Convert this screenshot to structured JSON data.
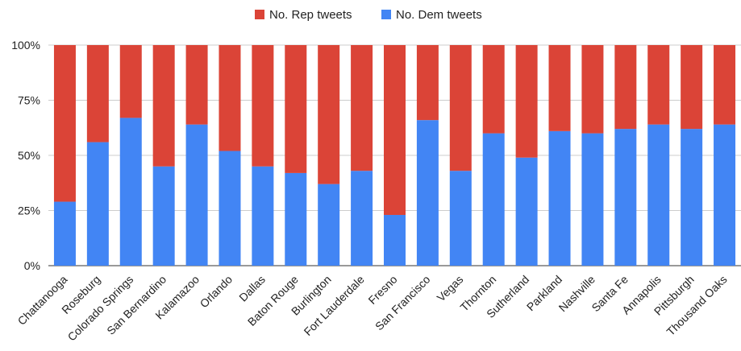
{
  "chart_data": {
    "type": "bar",
    "stacked": "percent",
    "title": "",
    "xlabel": "",
    "ylabel": "",
    "legend_position": "top",
    "grid": true,
    "ylim": [
      0,
      100
    ],
    "y_ticks": [
      "0%",
      "25%",
      "50%",
      "75%",
      "100%"
    ],
    "y_tick_values": [
      0,
      25,
      50,
      75,
      100
    ],
    "categories": [
      "Chattanooga",
      "Roseburg",
      "Colorado Springs",
      "San Bernardino",
      "Kalamazoo",
      "Orlando",
      "Dallas",
      "Baton Rouge",
      "Burlington",
      "Fort Lauderdale",
      "Fresno",
      "San Francisco",
      "Vegas",
      "Thornton",
      "Sutherland",
      "Parkland",
      "Nashville",
      "Santa Fe",
      "Annapolis",
      "Pittsburgh",
      "Thousand Oaks"
    ],
    "series": [
      {
        "name": "No. Rep tweets",
        "color": "#db4437",
        "values": [
          71,
          44,
          33,
          55,
          36,
          48,
          55,
          58,
          63,
          57,
          77,
          34,
          57,
          40,
          51,
          39,
          40,
          38,
          36,
          38,
          36
        ]
      },
      {
        "name": "No. Dem tweets",
        "color": "#4285f4",
        "values": [
          29,
          56,
          67,
          45,
          64,
          52,
          45,
          42,
          37,
          43,
          23,
          66,
          43,
          60,
          49,
          61,
          60,
          62,
          64,
          62,
          64
        ]
      }
    ]
  }
}
